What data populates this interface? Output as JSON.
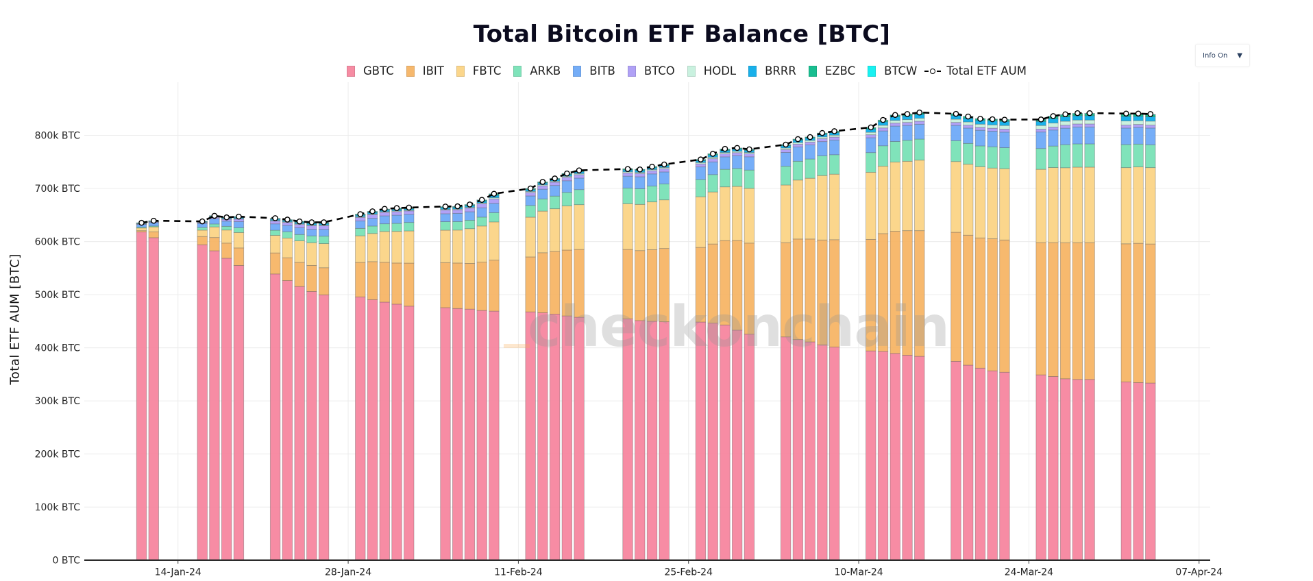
{
  "title": "Total Bitcoin ETF Balance [BTC]",
  "info_button": {
    "label": "Info On",
    "arrow": "▼"
  },
  "watermark": "checkonchain",
  "chart_data": {
    "type": "bar",
    "barmode": "stack",
    "title": "Total Bitcoin ETF Balance [BTC]",
    "xlabel": "",
    "ylabel": "Total ETF AUM [BTC]",
    "units": "thousand BTC",
    "ylim": [
      0,
      900
    ],
    "x_range": [
      "2024-01-06T07:00:00Z",
      "2024-04-07T22:00:00Z"
    ],
    "grid": true,
    "legend_position": "top-center",
    "y_ticks": [
      {
        "value": 0,
        "label": "0 BTC"
      },
      {
        "value": 100,
        "label": "100k BTC"
      },
      {
        "value": 200,
        "label": "200k BTC"
      },
      {
        "value": 300,
        "label": "300k BTC"
      },
      {
        "value": 400,
        "label": "400k BTC"
      },
      {
        "value": 500,
        "label": "500k BTC"
      },
      {
        "value": 600,
        "label": "600k BTC"
      },
      {
        "value": 700,
        "label": "700k BTC"
      },
      {
        "value": 800,
        "label": "800k BTC"
      }
    ],
    "x_ticks": [
      {
        "date": "2024-01-14",
        "label": "14-Jan-24"
      },
      {
        "date": "2024-01-28",
        "label": "28-Jan-24"
      },
      {
        "date": "2024-02-11",
        "label": "11-Feb-24"
      },
      {
        "date": "2024-02-25",
        "label": "25-Feb-24"
      },
      {
        "date": "2024-03-10",
        "label": "10-Mar-24"
      },
      {
        "date": "2024-03-24",
        "label": "24-Mar-24"
      },
      {
        "date": "2024-04-07",
        "label": "07-Apr-24"
      }
    ],
    "dates": [
      "2024-01-11",
      "2024-01-12",
      "2024-01-16",
      "2024-01-17",
      "2024-01-18",
      "2024-01-19",
      "2024-01-22",
      "2024-01-23",
      "2024-01-24",
      "2024-01-25",
      "2024-01-26",
      "2024-01-29",
      "2024-01-30",
      "2024-01-31",
      "2024-02-01",
      "2024-02-02",
      "2024-02-05",
      "2024-02-06",
      "2024-02-07",
      "2024-02-08",
      "2024-02-09",
      "2024-02-12",
      "2024-02-13",
      "2024-02-14",
      "2024-02-15",
      "2024-02-16",
      "2024-02-20",
      "2024-02-21",
      "2024-02-22",
      "2024-02-23",
      "2024-02-26",
      "2024-02-27",
      "2024-02-28",
      "2024-02-29",
      "2024-03-01",
      "2024-03-04",
      "2024-03-05",
      "2024-03-06",
      "2024-03-07",
      "2024-03-08",
      "2024-03-11",
      "2024-03-12",
      "2024-03-13",
      "2024-03-14",
      "2024-03-15",
      "2024-03-18",
      "2024-03-19",
      "2024-03-20",
      "2024-03-21",
      "2024-03-22",
      "2024-03-25",
      "2024-03-26",
      "2024-03-27",
      "2024-03-28",
      "2024-03-29",
      "2024-04-01",
      "2024-04-02",
      "2024-04-03"
    ],
    "series": [
      {
        "name": "GBTC",
        "color": "#f6809a",
        "values": [
          618,
          607.3,
          594,
          582.6,
          568.6,
          555,
          539,
          526.5,
          515.4,
          506,
          499.7,
          495.8,
          490.6,
          486,
          482.2,
          478.4,
          475.6,
          474,
          472.8,
          470.3,
          469,
          467.6,
          466,
          463.4,
          460,
          457.5,
          454.5,
          451.2,
          449.9,
          449,
          448.5,
          446.4,
          443,
          433.2,
          425.6,
          420.5,
          415.4,
          411.1,
          405.6,
          401.3,
          394.1,
          393.2,
          389.4,
          386,
          383.9,
          374.5,
          367.3,
          361.7,
          356.6,
          354,
          349,
          346,
          341.7,
          340.4,
          340.4,
          335.8,
          334.5,
          333.6
        ]
      },
      {
        "name": "IBIT",
        "color": "#f6b15e",
        "values": [
          2.5,
          11,
          15.5,
          25,
          28.5,
          33,
          39.6,
          43,
          45.4,
          49,
          51,
          65,
          71.6,
          75,
          77.4,
          81,
          84.8,
          85.6,
          86,
          91,
          96,
          103.5,
          113,
          118,
          124,
          127.7,
          130.7,
          131.8,
          134.8,
          138,
          140.5,
          149,
          159,
          169,
          171.5,
          177.4,
          189.4,
          193.7,
          197.4,
          202.2,
          210,
          221.8,
          230,
          234.5,
          236.6,
          243,
          244.7,
          245.2,
          248.6,
          249,
          249,
          252,
          256,
          257.5,
          257.5,
          260,
          262.2,
          261.8
        ]
      },
      {
        "name": "FBTC",
        "color": "#fbd27f",
        "values": [
          5,
          9.3,
          12,
          20,
          24.6,
          29,
          33,
          37,
          40.5,
          42.7,
          45.4,
          50,
          53,
          58,
          59.6,
          60.6,
          61,
          62,
          65.5,
          68,
          72,
          74.8,
          78.3,
          80.4,
          83,
          84.3,
          86,
          87,
          90,
          91.5,
          95.3,
          98,
          101,
          101.7,
          103,
          108.6,
          111,
          114.4,
          121.3,
          123.4,
          126.4,
          127,
          130.3,
          130.7,
          132.8,
          133.2,
          133.6,
          134,
          133.2,
          134.1,
          138,
          141.3,
          141.3,
          142.2,
          142.2,
          143.4,
          143.8,
          143.8
        ]
      },
      {
        "name": "ARKB",
        "color": "#72e0b3",
        "values": [
          1.7,
          1.7,
          5,
          5.5,
          7,
          9,
          9.7,
          12,
          12,
          13,
          14,
          14,
          14,
          14.4,
          15,
          16,
          16,
          16,
          15.8,
          16.7,
          17.4,
          22,
          23,
          23.8,
          25.5,
          28.3,
          29.4,
          29.4,
          29.7,
          30,
          32.4,
          32.7,
          33,
          33.6,
          34.5,
          35.3,
          35.4,
          36.2,
          37.1,
          36.6,
          37,
          38.3,
          38.7,
          39.5,
          39.6,
          39.2,
          39.2,
          39.2,
          40,
          39.6,
          39.2,
          40.5,
          43.4,
          43.8,
          43.8,
          43.4,
          43,
          43
        ]
      },
      {
        "name": "BITB",
        "color": "#67a5f7",
        "values": [
          5,
          6.4,
          7.5,
          9.6,
          9.7,
          11.5,
          12,
          12,
          12.7,
          12.5,
          13,
          14,
          14.6,
          15,
          15.5,
          15.3,
          15,
          15.6,
          16,
          17.5,
          17.5,
          18,
          18.3,
          20,
          22,
          21.7,
          22.5,
          22.6,
          23,
          22.6,
          23.8,
          23.9,
          23.5,
          24.3,
          25,
          26,
          26.8,
          26.5,
          26.8,
          27.7,
          28,
          28,
          29,
          28,
          28,
          28.9,
          28.9,
          29.4,
          29.4,
          29.3,
          31,
          30.2,
          31.1,
          31.9,
          31.9,
          31.1,
          31.5,
          31.5
        ]
      },
      {
        "name": "BTCO",
        "color": "#a897f6",
        "values": [
          1.2,
          1.4,
          1.8,
          2.8,
          3.5,
          4.8,
          5.3,
          5.5,
          6.2,
          6.6,
          6.6,
          6.6,
          6.7,
          6.6,
          6.7,
          6.4,
          6.8,
          6.6,
          6.9,
          7.5,
          8.5,
          6.5,
          6.4,
          6.2,
          6.4,
          6.5,
          6.0,
          6.0,
          6.0,
          6.1,
          5.8,
          6.0,
          5.6,
          5.6,
          5.6,
          5.5,
          5.5,
          5.5,
          5.5,
          5.6,
          5.6,
          5.6,
          5.6,
          5.6,
          5.7,
          5.5,
          5.5,
          5.5,
          5.6,
          5.7,
          5.5,
          5.6,
          5.6,
          5.6,
          5.6,
          5.6,
          5.5,
          5.6
        ]
      },
      {
        "name": "HODL",
        "color": "#c4f0dc",
        "values": [
          0.4,
          0.4,
          0.5,
          0.7,
          0.8,
          1.0,
          1.1,
          1.2,
          1.3,
          1.4,
          1.4,
          1.4,
          1.4,
          1.4,
          1.4,
          1.3,
          1.4,
          1.4,
          1.5,
          1.7,
          2.2,
          2.0,
          1.9,
          1.9,
          2.0,
          2.0,
          2.2,
          2.2,
          2.2,
          2.3,
          2.4,
          2.8,
          2.6,
          2.6,
          2.5,
          2.9,
          2.9,
          3.0,
          3.4,
          3.5,
          4.6,
          5.0,
          5.2,
          5.4,
          5.6,
          6.0,
          6.0,
          6.0,
          6.3,
          6.8,
          6.8,
          7.6,
          7.4,
          7.4,
          7.4,
          7.8,
          7.2,
          7.4
        ]
      },
      {
        "name": "BRRR",
        "color": "#00a8e8",
        "values": [
          0.8,
          0.9,
          1.0,
          1.5,
          1.8,
          2.3,
          2.4,
          2.5,
          2.7,
          2.9,
          2.9,
          2.9,
          3.0,
          2.9,
          3.0,
          2.8,
          3.0,
          2.9,
          3.1,
          3.5,
          4.4,
          3.5,
          3.4,
          3.3,
          3.4,
          3.5,
          3.6,
          3.6,
          3.6,
          3.7,
          3.7,
          4.2,
          4.0,
          4.0,
          3.8,
          4.2,
          4.3,
          4.3,
          4.8,
          4.9,
          6.0,
          6.6,
          6.8,
          6.9,
          7.0,
          7.0,
          7.0,
          7.0,
          7.3,
          7.6,
          7.6,
          8.4,
          8.2,
          8.2,
          8.2,
          8.6,
          8.2,
          8.3
        ]
      },
      {
        "name": "EZBC",
        "color": "#00b884",
        "values": [
          0.5,
          0.6,
          0.6,
          0.8,
          1.0,
          1.2,
          1.3,
          1.3,
          1.5,
          1.6,
          1.6,
          1.6,
          1.6,
          1.6,
          1.6,
          1.6,
          1.7,
          1.6,
          1.8,
          1.9,
          2.5,
          1.7,
          1.6,
          1.5,
          1.6,
          1.7,
          1.8,
          1.8,
          1.9,
          1.9,
          1.9,
          2.0,
          2.0,
          1.9,
          1.8,
          1.9,
          1.9,
          1.9,
          2.1,
          2.2,
          2.6,
          2.8,
          2.9,
          3.0,
          3.2,
          3.0,
          3.0,
          3.0,
          3.1,
          3.2,
          3.4,
          3.8,
          3.8,
          3.8,
          3.8,
          3.9,
          3.8,
          3.8
        ]
      },
      {
        "name": "BTCW",
        "color": "#00f0f0",
        "values": [
          0.1,
          0.1,
          0.1,
          0.2,
          0.2,
          0.2,
          0.2,
          0.2,
          0.2,
          0.3,
          0.3,
          0.3,
          0.3,
          0.3,
          0.3,
          0.3,
          0.3,
          0.3,
          0.3,
          0.3,
          0.4,
          0.3,
          0.3,
          0.3,
          0.3,
          0.3,
          0.3,
          0.3,
          0.3,
          0.3,
          0.3,
          0.3,
          0.3,
          0.3,
          0.3,
          0.3,
          0.3,
          0.3,
          0.4,
          0.4,
          0.4,
          0.4,
          0.4,
          0.4,
          0.5,
          0.5,
          0.5,
          0.5,
          0.5,
          0.5,
          0.6,
          0.6,
          0.6,
          0.6,
          0.6,
          0.6,
          0.6,
          0.6
        ]
      }
    ],
    "total_series": {
      "name": "Total ETF AUM",
      "color": "#000000",
      "values": [
        635.4,
        639.2,
        638,
        648.5,
        645.6,
        647,
        644,
        641.4,
        637.9,
        636.3,
        636.3,
        651.6,
        657,
        661.6,
        663,
        664,
        666,
        666.4,
        669.8,
        678.5,
        690,
        700,
        712.4,
        718.8,
        728.2,
        734,
        736.6,
        735.8,
        741,
        745.2,
        754.6,
        765.2,
        774.6,
        776.3,
        773.7,
        782.6,
        792.9,
        796.7,
        804.4,
        807.8,
        815,
        829,
        838.4,
        840.1,
        843,
        840.5,
        835.4,
        831.2,
        830.3,
        829.5,
        829.9,
        836.3,
        839.7,
        841.8,
        841.8,
        841,
        841,
        840.1
      ]
    }
  }
}
